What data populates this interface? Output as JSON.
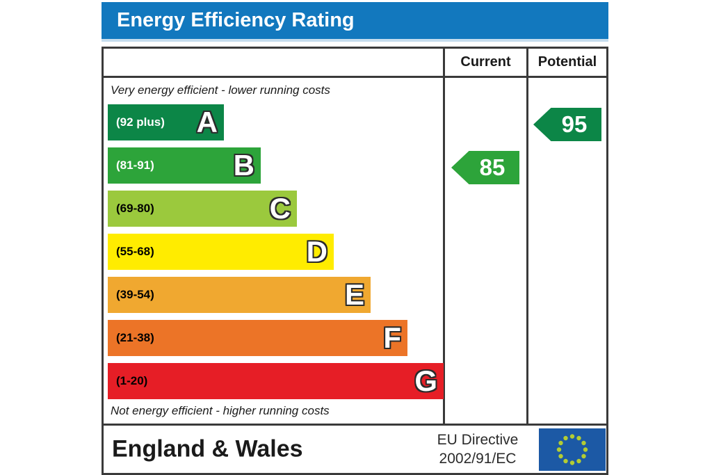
{
  "title": "Energy Efficiency Rating",
  "columns": {
    "current": "Current",
    "potential": "Potential"
  },
  "top_caption": "Very energy efficient - lower running costs",
  "bottom_caption": "Not energy efficient - higher running costs",
  "footer": {
    "region": "England & Wales",
    "directive_line1": "EU Directive",
    "directive_line2": "2002/91/EC",
    "flag_icon": "eu-flag"
  },
  "colors": {
    "header_blue": "#1278be",
    "header_strip": "#c6ddee",
    "border": "#3a3a3a",
    "flag_blue": "#1c59a5",
    "flag_star": "#b3cc33"
  },
  "chart_data": {
    "type": "bar",
    "title": "Energy Efficiency Rating",
    "xlabel": "",
    "ylabel": "",
    "axis_range": [
      1,
      100
    ],
    "legend": "none",
    "bands": [
      {
        "letter": "A",
        "range": "(92 plus)",
        "min": 92,
        "max": 100,
        "color": "#0c8647",
        "label_color": "#ffffff"
      },
      {
        "letter": "B",
        "range": "(81-91)",
        "min": 81,
        "max": 91,
        "color": "#2da43a",
        "label_color": "#ffffff"
      },
      {
        "letter": "C",
        "range": "(69-80)",
        "min": 69,
        "max": 80,
        "color": "#9bc93d",
        "label_color": "#000000"
      },
      {
        "letter": "D",
        "range": "(55-68)",
        "min": 55,
        "max": 68,
        "color": "#ffec00",
        "label_color": "#000000"
      },
      {
        "letter": "E",
        "range": "(39-54)",
        "min": 39,
        "max": 54,
        "color": "#f0a830",
        "label_color": "#000000"
      },
      {
        "letter": "F",
        "range": "(21-38)",
        "min": 21,
        "max": 38,
        "color": "#ec7427",
        "label_color": "#000000"
      },
      {
        "letter": "G",
        "range": "(1-20)",
        "min": 1,
        "max": 20,
        "color": "#e61e26",
        "label_color": "#000000"
      }
    ],
    "current": {
      "value": 85,
      "band": "B",
      "color": "#2da43a"
    },
    "potential": {
      "value": 95,
      "band": "A",
      "color": "#0c8647"
    }
  }
}
